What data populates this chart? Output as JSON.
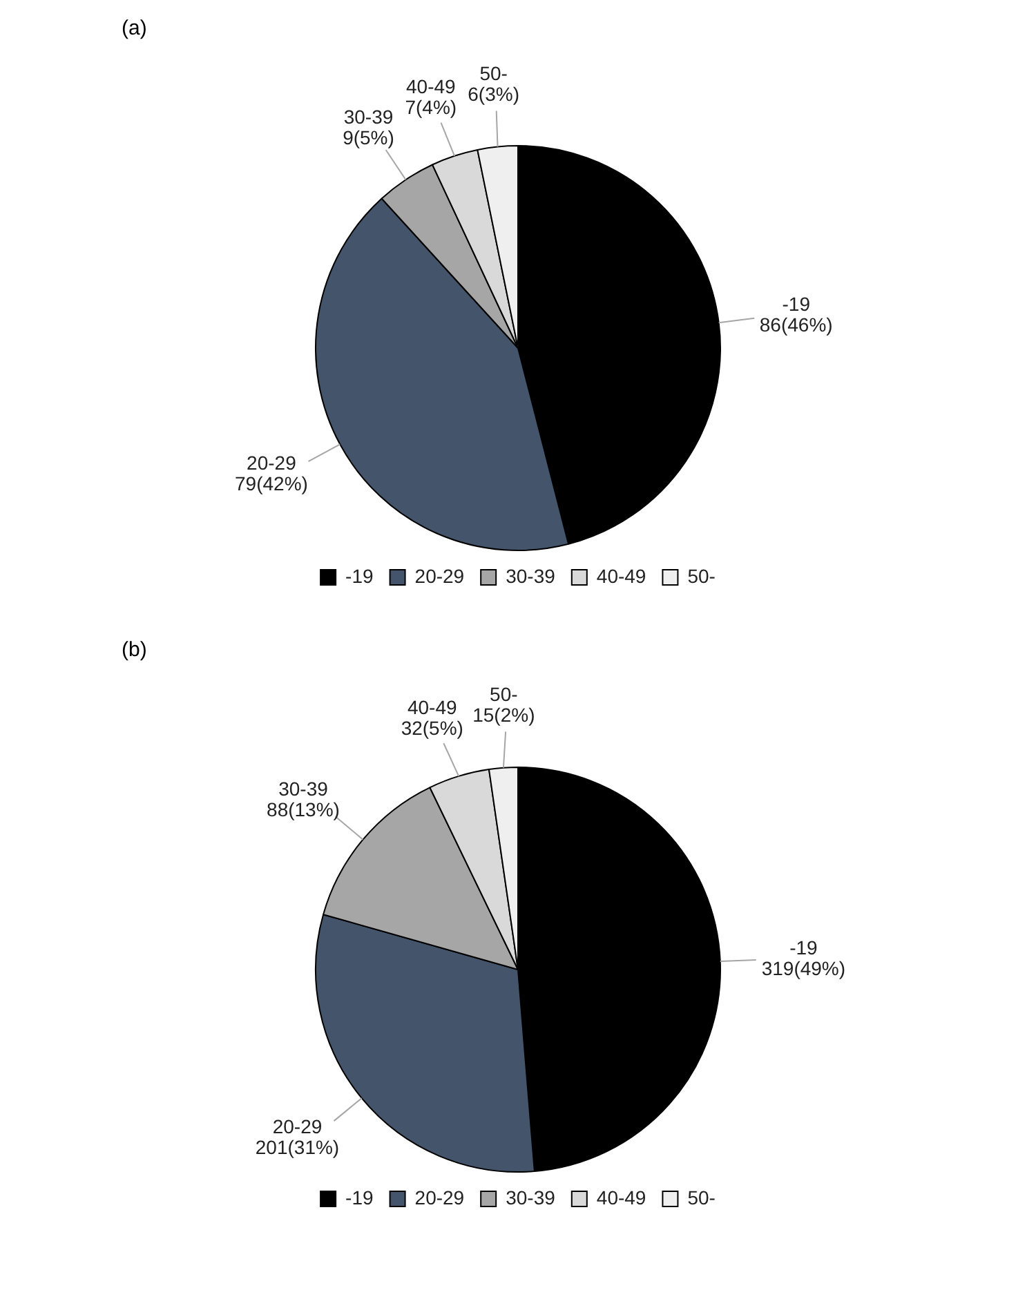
{
  "chart_data": [
    {
      "type": "pie",
      "title": "(a)",
      "categories": [
        "-19",
        "20-29",
        "30-39",
        "40-49",
        "50-"
      ],
      "values": [
        86,
        79,
        9,
        7,
        6
      ],
      "colors": [
        "#000000",
        "#44546a",
        "#a6a6a6",
        "#d9d9d9",
        "#efefef"
      ],
      "value_labels": [
        "86(46%)",
        "79(42%)",
        "9(5%)",
        "7(4%)",
        "6(3%)"
      ],
      "legend": "bottom"
    },
    {
      "type": "pie",
      "title": "(b)",
      "categories": [
        "-19",
        "20-29",
        "30-39",
        "40-49",
        "50-"
      ],
      "values": [
        319,
        201,
        88,
        32,
        15
      ],
      "colors": [
        "#000000",
        "#44546a",
        "#a6a6a6",
        "#d9d9d9",
        "#efefef"
      ],
      "value_labels": [
        "319(49%)",
        "201(31%)",
        "88(13%)",
        "32(5%)",
        "15(2%)"
      ],
      "legend": "bottom"
    }
  ]
}
